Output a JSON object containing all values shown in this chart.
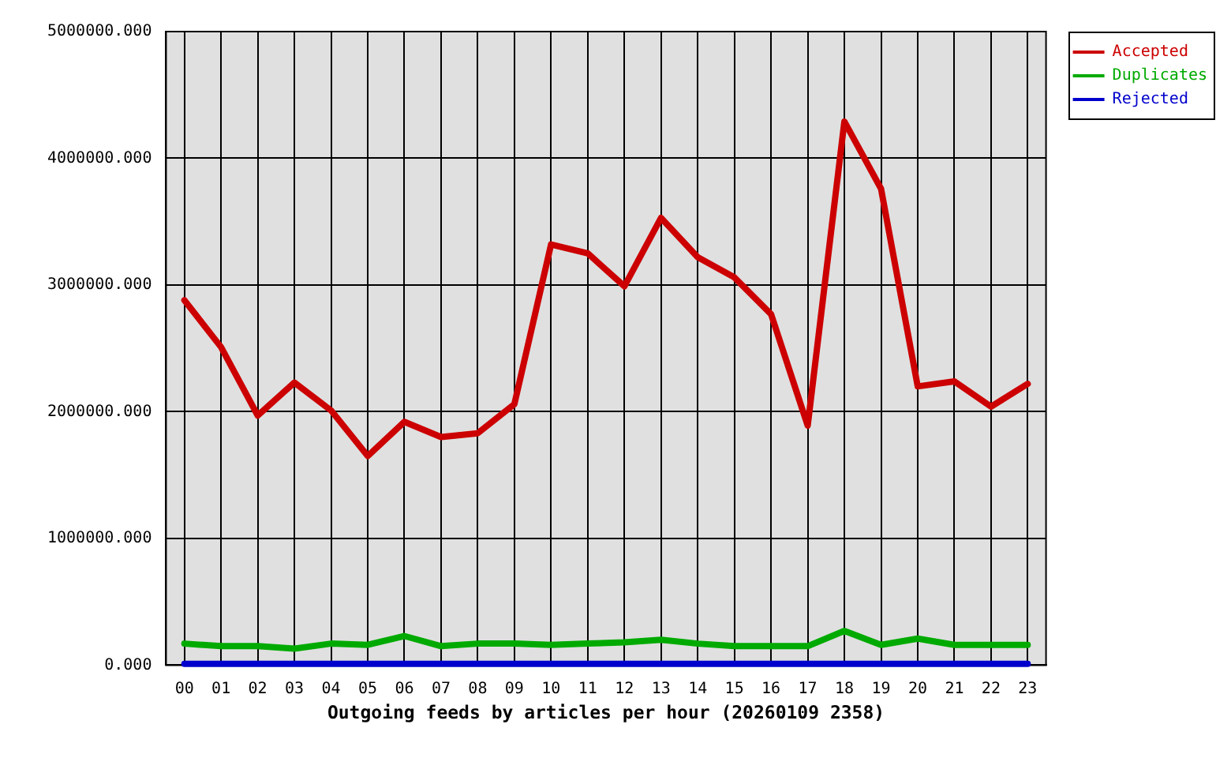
{
  "chart_data": {
    "type": "line",
    "xlabel": "Outgoing feeds by articles per hour (20260109 2358)",
    "categories": [
      "00",
      "01",
      "02",
      "03",
      "04",
      "05",
      "06",
      "07",
      "08",
      "09",
      "10",
      "11",
      "12",
      "13",
      "14",
      "15",
      "16",
      "17",
      "18",
      "19",
      "20",
      "21",
      "22",
      "23"
    ],
    "series": [
      {
        "name": "Accepted",
        "color": "#cc0000",
        "values": [
          2880000,
          2510000,
          1970000,
          2230000,
          2010000,
          1650000,
          1920000,
          1800000,
          1830000,
          2060000,
          3320000,
          3250000,
          2990000,
          3530000,
          3220000,
          3060000,
          2770000,
          1890000,
          4290000,
          3760000,
          2200000,
          2240000,
          2040000,
          2220000
        ]
      },
      {
        "name": "Duplicates",
        "color": "#00aa00",
        "values": [
          170000,
          150000,
          150000,
          130000,
          170000,
          160000,
          230000,
          150000,
          170000,
          170000,
          160000,
          170000,
          180000,
          200000,
          170000,
          150000,
          150000,
          150000,
          270000,
          160000,
          210000,
          160000,
          160000,
          160000
        ]
      },
      {
        "name": "Rejected",
        "color": "#0000cc",
        "values": [
          10000,
          10000,
          10000,
          10000,
          10000,
          10000,
          10000,
          10000,
          10000,
          10000,
          10000,
          10000,
          10000,
          10000,
          10000,
          10000,
          10000,
          10000,
          10000,
          10000,
          10000,
          10000,
          10000,
          10000
        ]
      }
    ],
    "ylim": [
      0,
      5000000
    ],
    "yticks": [
      {
        "value": 0,
        "label": "0.000"
      },
      {
        "value": 1000000,
        "label": "1000000.000"
      },
      {
        "value": 2000000,
        "label": "2000000.000"
      },
      {
        "value": 3000000,
        "label": "3000000.000"
      },
      {
        "value": 4000000,
        "label": "4000000.000"
      },
      {
        "value": 5000000,
        "label": "5000000.000"
      }
    ],
    "grid": true,
    "legend": "top right",
    "line_style": "solid"
  }
}
